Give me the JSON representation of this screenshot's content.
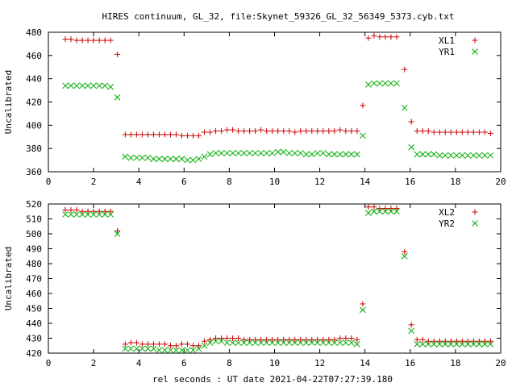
{
  "chart_data": {
    "title": "HIRES continuum, GL_32, file:Skynet_59326_GL_32_56349_5373.cyb.txt",
    "xlabel": "rel seconds : UT date 2021-04-22T07:27:39.180",
    "panels": [
      {
        "type": "scatter",
        "ylabel": "Uncalibrated",
        "xlim": [
          0,
          20
        ],
        "ylim": [
          360,
          480
        ],
        "xticks": [
          "0",
          "2",
          "4",
          "6",
          "8",
          "10",
          "12",
          "14",
          "16",
          "18",
          "20"
        ],
        "yticks": [
          "360",
          "380",
          "400",
          "420",
          "440",
          "460",
          "480"
        ],
        "legend_position": "top-right",
        "series": [
          {
            "name": "XL1",
            "marker": "plus",
            "color": "#cc0000",
            "x": [
              0.75,
              1.0,
              1.25,
              1.5,
              1.75,
              2.0,
              2.25,
              2.5,
              2.75,
              3.05,
              3.4,
              3.65,
              3.9,
              4.15,
              4.4,
              4.65,
              4.9,
              5.15,
              5.4,
              5.65,
              5.9,
              6.15,
              6.4,
              6.65,
              6.9,
              7.15,
              7.4,
              7.65,
              7.9,
              8.15,
              8.4,
              8.65,
              8.9,
              9.15,
              9.4,
              9.65,
              9.9,
              10.15,
              10.4,
              10.65,
              10.9,
              11.15,
              11.4,
              11.65,
              11.9,
              12.15,
              12.4,
              12.65,
              12.9,
              13.15,
              13.4,
              13.65,
              13.9,
              14.15,
              14.4,
              14.65,
              14.9,
              15.15,
              15.4,
              15.75,
              16.05,
              16.3,
              16.55,
              16.8,
              17.05,
              17.3,
              17.55,
              17.8,
              18.05,
              18.3,
              18.55,
              18.8,
              19.05,
              19.3,
              19.55
            ],
            "y": [
              474,
              474,
              473,
              473,
              473,
              473,
              473,
              473,
              473,
              461,
              392,
              392,
              392,
              392,
              392,
              392,
              392,
              392,
              392,
              392,
              391,
              391,
              391,
              391,
              394,
              394,
              395,
              395,
              396,
              396,
              395,
              395,
              395,
              395,
              396,
              395,
              395,
              395,
              395,
              395,
              394,
              395,
              395,
              395,
              395,
              395,
              395,
              395,
              396,
              395,
              395,
              395,
              417,
              475,
              477,
              476,
              476,
              476,
              476,
              448,
              403,
              395,
              395,
              395,
              394,
              394,
              394,
              394,
              394,
              394,
              394,
              394,
              394,
              394,
              393
            ]
          },
          {
            "name": "YR1",
            "marker": "cross",
            "color": "#00aa00",
            "x": [
              0.75,
              1.0,
              1.25,
              1.5,
              1.75,
              2.0,
              2.25,
              2.5,
              2.75,
              3.05,
              3.4,
              3.65,
              3.9,
              4.15,
              4.4,
              4.65,
              4.9,
              5.15,
              5.4,
              5.65,
              5.9,
              6.15,
              6.4,
              6.65,
              6.9,
              7.15,
              7.4,
              7.65,
              7.9,
              8.15,
              8.4,
              8.65,
              8.9,
              9.15,
              9.4,
              9.65,
              9.9,
              10.15,
              10.4,
              10.65,
              10.9,
              11.15,
              11.4,
              11.65,
              11.9,
              12.15,
              12.4,
              12.65,
              12.9,
              13.15,
              13.4,
              13.65,
              13.9,
              14.15,
              14.4,
              14.65,
              14.9,
              15.15,
              15.4,
              15.75,
              16.05,
              16.3,
              16.55,
              16.8,
              17.05,
              17.3,
              17.55,
              17.8,
              18.05,
              18.3,
              18.55,
              18.8,
              19.05,
              19.3,
              19.55
            ],
            "y": [
              434,
              434,
              434,
              434,
              434,
              434,
              434,
              434,
              433,
              424,
              373,
              372,
              372,
              372,
              372,
              371,
              371,
              371,
              371,
              371,
              371,
              370,
              370,
              371,
              373,
              375,
              376,
              376,
              376,
              376,
              376,
              376,
              376,
              376,
              376,
              376,
              376,
              377,
              377,
              376,
              376,
              376,
              375,
              375,
              376,
              376,
              375,
              375,
              375,
              375,
              375,
              375,
              391,
              435,
              436,
              436,
              436,
              436,
              436,
              415,
              381,
              375,
              375,
              375,
              375,
              374,
              374,
              374,
              374,
              374,
              374,
              374,
              374,
              374,
              374
            ]
          }
        ]
      },
      {
        "type": "scatter",
        "ylabel": "Uncalibrated",
        "xlim": [
          0,
          20
        ],
        "ylim": [
          420,
          520
        ],
        "xticks": [
          "0",
          "2",
          "4",
          "6",
          "8",
          "10",
          "12",
          "14",
          "16",
          "18",
          "20"
        ],
        "yticks": [
          "420",
          "430",
          "440",
          "450",
          "460",
          "470",
          "480",
          "490",
          "500",
          "510",
          "520"
        ],
        "legend_position": "top-right",
        "series": [
          {
            "name": "XL2",
            "marker": "plus",
            "color": "#cc0000",
            "x": [
              0.75,
              1.0,
              1.25,
              1.5,
              1.75,
              2.0,
              2.25,
              2.5,
              2.75,
              3.05,
              3.4,
              3.65,
              3.9,
              4.15,
              4.4,
              4.65,
              4.9,
              5.15,
              5.4,
              5.65,
              5.9,
              6.15,
              6.4,
              6.65,
              6.9,
              7.15,
              7.4,
              7.65,
              7.9,
              8.15,
              8.4,
              8.65,
              8.9,
              9.15,
              9.4,
              9.65,
              9.9,
              10.15,
              10.4,
              10.65,
              10.9,
              11.15,
              11.4,
              11.65,
              11.9,
              12.15,
              12.4,
              12.65,
              12.9,
              13.15,
              13.4,
              13.65,
              13.9,
              14.15,
              14.4,
              14.65,
              14.9,
              15.15,
              15.4,
              15.75,
              16.05,
              16.3,
              16.55,
              16.8,
              17.05,
              17.3,
              17.55,
              17.8,
              18.05,
              18.3,
              18.55,
              18.8,
              19.05,
              19.3,
              19.55
            ],
            "y": [
              516,
              516,
              516,
              515,
              515,
              515,
              515,
              515,
              515,
              502,
              426,
              427,
              427,
              426,
              426,
              426,
              426,
              426,
              425,
              425,
              426,
              426,
              425,
              425,
              428,
              429,
              430,
              430,
              430,
              430,
              430,
              429,
              429,
              429,
              429,
              429,
              429,
              429,
              429,
              429,
              429,
              429,
              429,
              429,
              429,
              429,
              429,
              429,
              430,
              430,
              430,
              429,
              453,
              518,
              518,
              517,
              517,
              517,
              517,
              488,
              439,
              429,
              429,
              428,
              428,
              428,
              428,
              428,
              428,
              428,
              428,
              428,
              428,
              428,
              428
            ]
          },
          {
            "name": "YR2",
            "marker": "cross",
            "color": "#00aa00",
            "x": [
              0.75,
              1.0,
              1.25,
              1.5,
              1.75,
              2.0,
              2.25,
              2.5,
              2.75,
              3.05,
              3.4,
              3.65,
              3.9,
              4.15,
              4.4,
              4.65,
              4.9,
              5.15,
              5.4,
              5.65,
              5.9,
              6.15,
              6.4,
              6.65,
              6.9,
              7.15,
              7.4,
              7.65,
              7.9,
              8.15,
              8.4,
              8.65,
              8.9,
              9.15,
              9.4,
              9.65,
              9.9,
              10.15,
              10.4,
              10.65,
              10.9,
              11.15,
              11.4,
              11.65,
              11.9,
              12.15,
              12.4,
              12.65,
              12.9,
              13.15,
              13.4,
              13.65,
              13.9,
              14.15,
              14.4,
              14.65,
              14.9,
              15.15,
              15.4,
              15.75,
              16.05,
              16.3,
              16.55,
              16.8,
              17.05,
              17.3,
              17.55,
              17.8,
              18.05,
              18.3,
              18.55,
              18.8,
              19.05,
              19.3,
              19.55
            ],
            "y": [
              513,
              513,
              513,
              513,
              513,
              513,
              513,
              513,
              513,
              500,
              423,
              423,
              423,
              423,
              423,
              423,
              422,
              422,
              422,
              422,
              422,
              422,
              422,
              423,
              425,
              427,
              428,
              428,
              427,
              427,
              427,
              427,
              427,
              427,
              427,
              427,
              427,
              427,
              427,
              427,
              427,
              427,
              427,
              427,
              427,
              427,
              427,
              427,
              427,
              427,
              427,
              426,
              449,
              514,
              515,
              515,
              515,
              515,
              515,
              485,
              435,
              426,
              426,
              426,
              426,
              426,
              426,
              426,
              426,
              426,
              426,
              426,
              426,
              426,
              426
            ]
          }
        ]
      }
    ]
  }
}
